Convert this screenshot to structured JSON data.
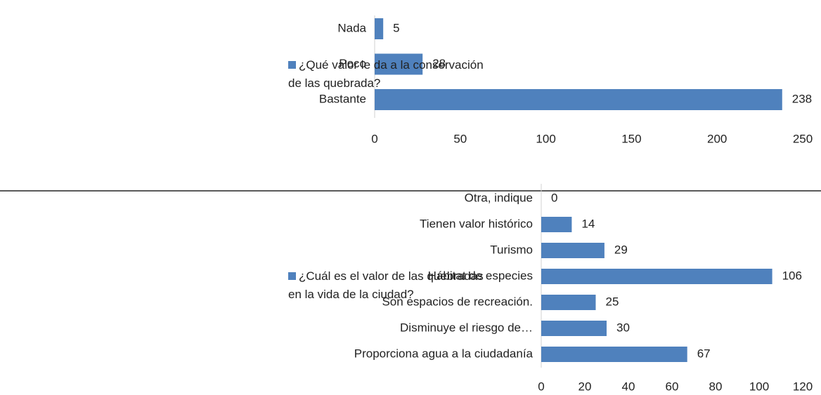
{
  "chart_data": [
    {
      "type": "barh",
      "categories": [
        "Nada",
        "Poco",
        "Bastante"
      ],
      "series": [
        {
          "name": "¿Qué valor le da a la conservación de las quebrada?",
          "color": "#4f81bd",
          "values": [
            5,
            28,
            238
          ]
        }
      ],
      "xlim": [
        0,
        250
      ],
      "xticks": [
        0,
        50,
        100,
        150,
        200,
        250
      ],
      "legend": "left"
    },
    {
      "type": "barh",
      "categories": [
        "Otra, indique",
        "Tienen valor histórico",
        "Turismo",
        "Hábitat de especies",
        "Son espacios de recreación.",
        "Disminuye el riesgo de…",
        "Proporciona agua a la ciudadanía"
      ],
      "series": [
        {
          "name": "¿Cuál es el valor de las quebradas en la vida de la ciudad?",
          "color": "#4f81bd",
          "values": [
            0,
            14,
            29,
            106,
            25,
            30,
            67
          ]
        }
      ],
      "xlim": [
        0,
        120
      ],
      "xticks": [
        0,
        20,
        40,
        60,
        80,
        100,
        120
      ],
      "legend": "left"
    }
  ]
}
